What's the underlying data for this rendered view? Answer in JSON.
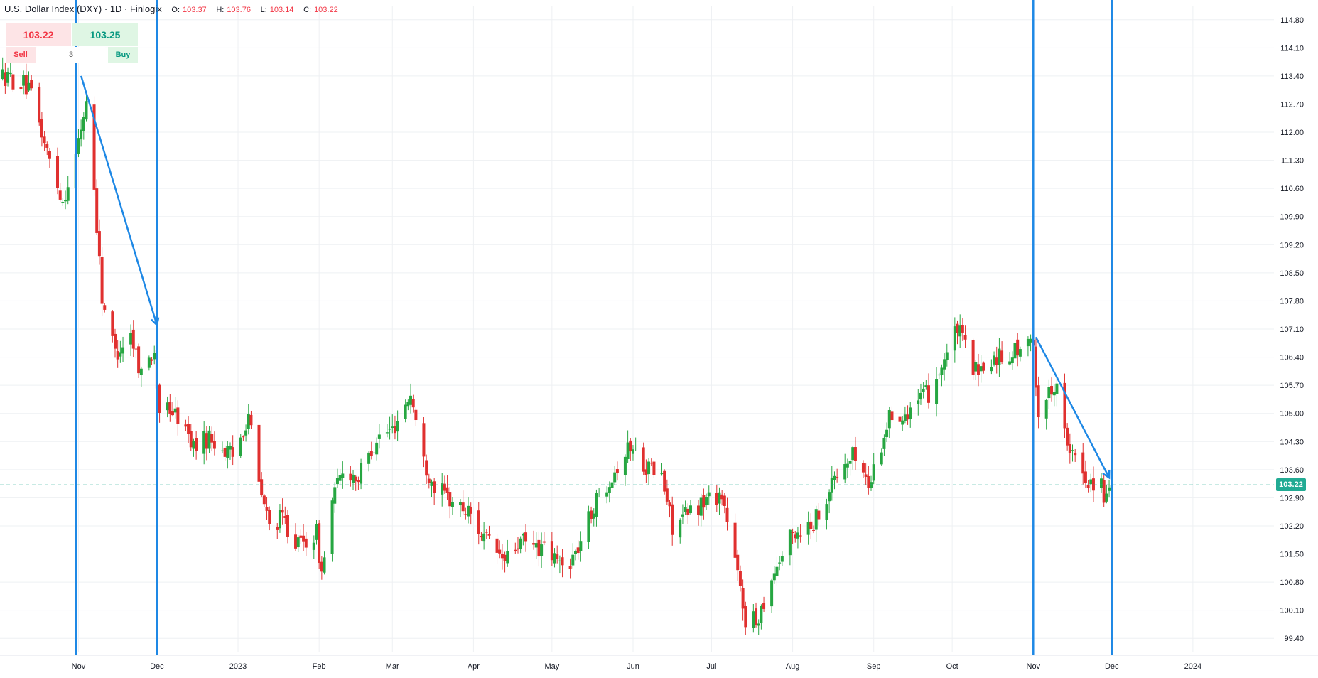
{
  "header": {
    "symbol": "U.S. Dollar Index (DXY) · 1D · Finlogix",
    "o_label": "O:",
    "o_value": "103.37",
    "h_label": "H:",
    "h_value": "103.76",
    "l_label": "L:",
    "l_value": "103.14",
    "c_label": "C:",
    "c_value": "103.22"
  },
  "trade_panel": {
    "sell_price": "103.22",
    "buy_price": "103.25",
    "sell_label": "Sell",
    "buy_label": "Buy",
    "quantity": "3"
  },
  "last_price_label": "103.22",
  "colors": {
    "up": "#26a641",
    "down": "#e0302f",
    "annotation": "#1e88e5",
    "last_price": "#22ab94"
  },
  "chart_data": {
    "type": "candlestick",
    "title": "",
    "xlabel": "",
    "ylabel": "",
    "ylim": [
      99.05,
      115.15
    ],
    "y_ticks": [
      "114.80",
      "114.10",
      "113.40",
      "112.70",
      "112.00",
      "111.30",
      "110.60",
      "109.90",
      "109.20",
      "108.50",
      "107.80",
      "107.10",
      "106.40",
      "105.70",
      "105.00",
      "104.30",
      "103.60",
      "102.90",
      "102.20",
      "101.50",
      "100.80",
      "100.10",
      "99.40"
    ],
    "x_ticks": [
      "Nov",
      "Dec",
      "2023",
      "Feb",
      "Mar",
      "Apr",
      "May",
      "Jun",
      "Jul",
      "Aug",
      "Sep",
      "Oct",
      "Nov",
      "Dec",
      "2024"
    ],
    "x_range": [
      "2022-10-02",
      "2024-02-01"
    ],
    "last_close": 103.22,
    "series": [
      {
        "anchors": [
          [
            "2022-10-03",
            113.4
          ],
          [
            "2022-10-11",
            113.2
          ],
          [
            "2022-10-14",
            112.9
          ],
          [
            "2022-10-20",
            111.5
          ],
          [
            "2022-10-26",
            110.3
          ],
          [
            "2022-10-31",
            111.4
          ],
          [
            "2022-11-04",
            112.8
          ],
          [
            "2022-11-07",
            110.6
          ],
          [
            "2022-11-10",
            107.9
          ],
          [
            "2022-11-15",
            106.5
          ],
          [
            "2022-11-21",
            107.0
          ],
          [
            "2022-11-25",
            106.0
          ],
          [
            "2022-11-30",
            106.6
          ],
          [
            "2022-12-02",
            104.8
          ],
          [
            "2022-12-05",
            105.2
          ],
          [
            "2022-12-09",
            104.9
          ],
          [
            "2022-12-15",
            104.2
          ],
          [
            "2022-12-21",
            104.4
          ],
          [
            "2022-12-30",
            103.9
          ],
          [
            "2023-01-05",
            105.0
          ],
          [
            "2023-01-09",
            103.2
          ],
          [
            "2023-01-13",
            102.2
          ],
          [
            "2023-01-18",
            102.4
          ],
          [
            "2023-01-24",
            101.7
          ],
          [
            "2023-01-31",
            102.0
          ],
          [
            "2023-02-02",
            101.0
          ],
          [
            "2023-02-06",
            102.8
          ],
          [
            "2023-02-10",
            103.6
          ],
          [
            "2023-02-16",
            103.4
          ],
          [
            "2023-02-23",
            104.4
          ],
          [
            "2023-03-01",
            104.6
          ],
          [
            "2023-03-08",
            105.5
          ],
          [
            "2023-03-13",
            103.8
          ],
          [
            "2023-03-17",
            103.2
          ],
          [
            "2023-03-24",
            102.8
          ],
          [
            "2023-03-31",
            102.5
          ],
          [
            "2023-04-05",
            101.9
          ],
          [
            "2023-04-13",
            101.3
          ],
          [
            "2023-04-19",
            101.8
          ],
          [
            "2023-04-28",
            101.6
          ],
          [
            "2023-05-05",
            101.2
          ],
          [
            "2023-05-10",
            101.5
          ],
          [
            "2023-05-17",
            102.7
          ],
          [
            "2023-05-23",
            103.4
          ],
          [
            "2023-05-31",
            104.2
          ],
          [
            "2023-06-06",
            103.7
          ],
          [
            "2023-06-12",
            103.4
          ],
          [
            "2023-06-16",
            102.2
          ],
          [
            "2023-06-22",
            102.5
          ],
          [
            "2023-06-30",
            102.9
          ],
          [
            "2023-07-05",
            103.0
          ],
          [
            "2023-07-12",
            100.6
          ],
          [
            "2023-07-14",
            99.9
          ],
          [
            "2023-07-18",
            99.8
          ],
          [
            "2023-07-25",
            101.1
          ],
          [
            "2023-08-01",
            102.0
          ],
          [
            "2023-08-09",
            102.3
          ],
          [
            "2023-08-17",
            103.4
          ],
          [
            "2023-08-25",
            104.0
          ],
          [
            "2023-08-30",
            103.2
          ],
          [
            "2023-09-07",
            104.9
          ],
          [
            "2023-09-14",
            105.1
          ],
          [
            "2023-09-22",
            105.5
          ],
          [
            "2023-09-29",
            106.5
          ],
          [
            "2023-10-03",
            107.1
          ],
          [
            "2023-10-11",
            105.9
          ],
          [
            "2023-10-17",
            106.4
          ],
          [
            "2023-10-26",
            106.6
          ],
          [
            "2023-11-01",
            106.7
          ],
          [
            "2023-11-03",
            105.0
          ],
          [
            "2023-11-10",
            105.9
          ],
          [
            "2023-11-14",
            104.1
          ],
          [
            "2023-11-21",
            103.4
          ],
          [
            "2023-11-27",
            103.2
          ],
          [
            "2023-11-29",
            102.8
          ],
          [
            "2023-12-01",
            103.22
          ]
        ]
      }
    ],
    "annotations": {
      "vlines": [
        "2022-10-31",
        "2022-12-01",
        "2023-11-01",
        "2023-12-01"
      ],
      "arrows": [
        {
          "from": [
            "2022-11-02",
            113.4
          ],
          "to": [
            "2022-12-01",
            107.2
          ]
        },
        {
          "from": [
            "2023-11-02",
            106.9
          ],
          "to": [
            "2023-11-30",
            103.4
          ]
        }
      ]
    }
  }
}
